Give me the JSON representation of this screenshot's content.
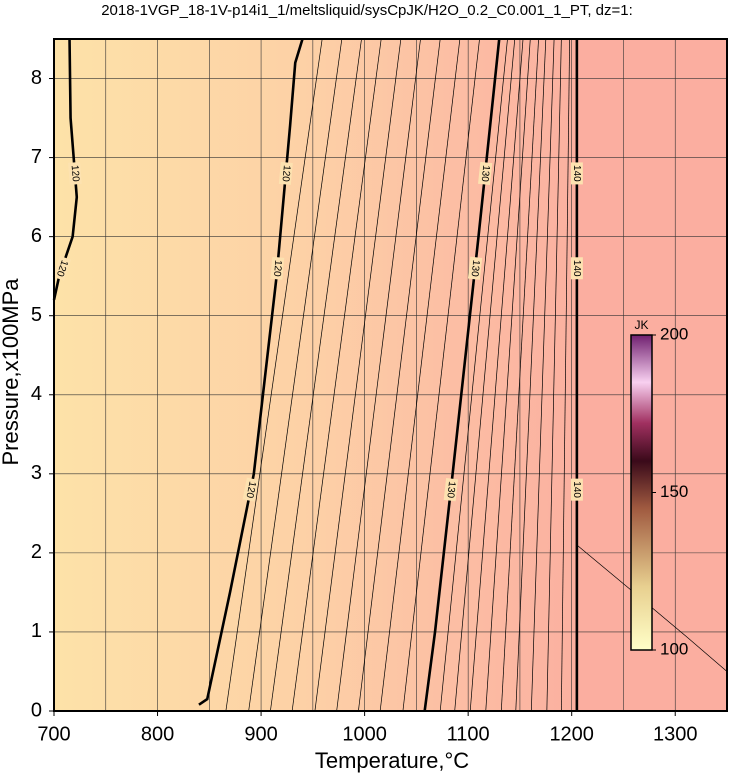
{
  "chart_data": {
    "type": "contour",
    "title": "2018-1VGP_18-1V-p14i1_1/meltsliquid/sysCpJK/H2O_0.2_C0.001_1_PT, dz=1:",
    "x_label": "Temperature,°C",
    "y_label": "Pressure,x100MPa",
    "xlim": [
      700,
      1350
    ],
    "ylim": [
      0,
      8.5
    ],
    "xticks": [
      700,
      800,
      900,
      1000,
      1100,
      1200,
      1300
    ],
    "yticks": [
      0,
      1,
      2,
      3,
      4,
      5,
      6,
      7,
      8
    ],
    "xgrid": [
      750,
      800,
      850,
      900,
      950,
      1000,
      1050,
      1100,
      1150,
      1200,
      1250,
      1300
    ],
    "grid": true,
    "contours": [
      {
        "level": 120,
        "bold": true,
        "x": [
          715,
          716,
          722,
          718,
          705,
          700
        ],
        "y": [
          8.5,
          7.5,
          6.5,
          6.0,
          5.5,
          5.2
        ]
      },
      {
        "level": 120,
        "bold": true,
        "x": [
          940,
          933,
          928,
          915,
          893,
          870,
          848,
          840
        ],
        "y": [
          8.5,
          8.2,
          7.4,
          5.5,
          3.0,
          1.5,
          0.15,
          0.08
        ]
      },
      {
        "level": 121,
        "bold": false,
        "x": [
          959,
          866
        ],
        "y": [
          8.5,
          0
        ]
      },
      {
        "level": 122,
        "bold": false,
        "x": [
          978,
          888
        ],
        "y": [
          8.5,
          0
        ]
      },
      {
        "level": 123,
        "bold": false,
        "x": [
          997,
          909
        ],
        "y": [
          8.5,
          0
        ]
      },
      {
        "level": 124,
        "bold": false,
        "x": [
          1016,
          930
        ],
        "y": [
          8.5,
          0
        ]
      },
      {
        "level": 125,
        "bold": false,
        "x": [
          1035,
          952
        ],
        "y": [
          8.5,
          0
        ]
      },
      {
        "level": 126,
        "bold": false,
        "x": [
          1054,
          973
        ],
        "y": [
          8.5,
          0
        ]
      },
      {
        "level": 127,
        "bold": false,
        "x": [
          1073,
          994
        ],
        "y": [
          8.5,
          0
        ]
      },
      {
        "level": 128,
        "bold": false,
        "x": [
          1092,
          1015
        ],
        "y": [
          8.5,
          0
        ]
      },
      {
        "level": 129,
        "bold": false,
        "x": [
          1111,
          1037
        ],
        "y": [
          8.5,
          0
        ]
      },
      {
        "level": 130,
        "bold": true,
        "x": [
          1130,
          1110,
          1085,
          1068,
          1058
        ],
        "y": [
          8.5,
          6.0,
          3.0,
          1.0,
          0
        ]
      },
      {
        "level": 131,
        "bold": false,
        "x": [
          1138,
          1073
        ],
        "y": [
          8.5,
          0
        ]
      },
      {
        "level": 132,
        "bold": false,
        "x": [
          1145,
          1087
        ],
        "y": [
          8.5,
          0
        ]
      },
      {
        "level": 133,
        "bold": false,
        "x": [
          1153,
          1102
        ],
        "y": [
          8.5,
          0
        ]
      },
      {
        "level": 134,
        "bold": false,
        "x": [
          1160,
          1117
        ],
        "y": [
          8.5,
          0
        ]
      },
      {
        "level": 135,
        "bold": false,
        "x": [
          1168,
          1132
        ],
        "y": [
          8.5,
          0
        ]
      },
      {
        "level": 136,
        "bold": false,
        "x": [
          1175,
          1146
        ],
        "y": [
          8.5,
          0
        ]
      },
      {
        "level": 137,
        "bold": false,
        "x": [
          1183,
          1161
        ],
        "y": [
          8.5,
          0
        ]
      },
      {
        "level": 138,
        "bold": false,
        "x": [
          1190,
          1176
        ],
        "y": [
          8.5,
          0
        ]
      },
      {
        "level": 139,
        "bold": false,
        "x": [
          1198,
          1190
        ],
        "y": [
          8.5,
          0
        ]
      },
      {
        "level": 140,
        "bold": true,
        "x": [
          1205,
          1205
        ],
        "y": [
          8.5,
          0
        ]
      },
      {
        "level": 141,
        "bold": false,
        "x": [
          1205,
          1260,
          1310,
          1350
        ],
        "y": [
          2.1,
          1.5,
          0.95,
          0.5
        ]
      }
    ],
    "colorbar": {
      "label": "JK",
      "lim": [
        100,
        200
      ],
      "ticks": [
        100,
        150,
        200
      ]
    }
  }
}
